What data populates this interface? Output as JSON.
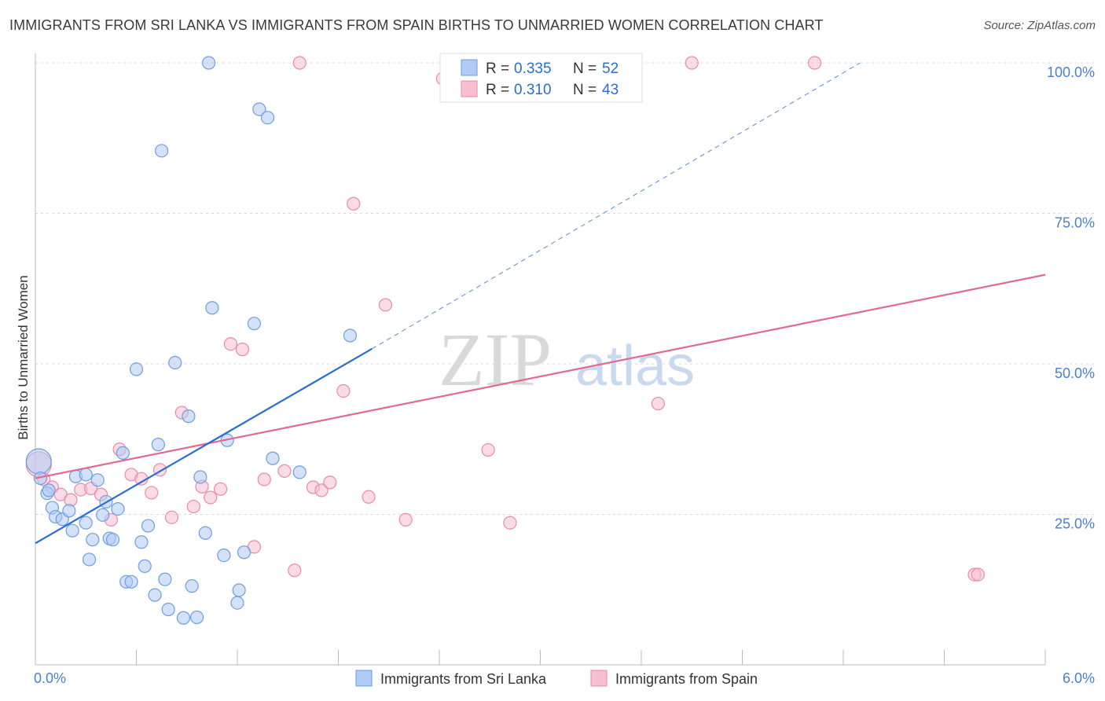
{
  "title": "IMMIGRANTS FROM SRI LANKA VS IMMIGRANTS FROM SPAIN BIRTHS TO UNMARRIED WOMEN CORRELATION CHART",
  "source": "Source: ZipAtlas.com",
  "watermark": {
    "part1": "ZIP",
    "part2": "atlas"
  },
  "colors": {
    "sri_lanka_fill": "#aecbf2",
    "sri_lanka_stroke": "#6e9ee0",
    "sri_lanka_line": "#2a6fd0",
    "spain_fill": "#f8bfd1",
    "spain_stroke": "#e88aa9",
    "spain_line": "#e06a93",
    "tick_label": "#4a7fd0",
    "grid": "#d8d8d8"
  },
  "legend": {
    "rows": [
      {
        "r_label": "R =",
        "r_value": "0.335",
        "n_label": "N =",
        "n_value": "52"
      },
      {
        "r_label": "R =",
        "r_value": "0.310",
        "n_label": "N =",
        "n_value": "43"
      }
    ]
  },
  "chart_data": {
    "type": "scatter",
    "title": "IMMIGRANTS FROM SRI LANKA VS IMMIGRANTS FROM SPAIN BIRTHS TO UNMARRIED WOMEN CORRELATION CHART",
    "xlabel": "",
    "ylabel": "Births to Unmarried Women",
    "xlim": [
      0,
      6
    ],
    "ylim": [
      0,
      100
    ],
    "x_tick_labels": [
      {
        "value": 0,
        "label": "0.0%"
      },
      {
        "value": 6,
        "label": "6.0%"
      }
    ],
    "y_tick_labels": [
      {
        "value": 25,
        "label": "25.0%"
      },
      {
        "value": 50,
        "label": "50.0%"
      },
      {
        "value": 75,
        "label": "75.0%"
      },
      {
        "value": 100,
        "label": "100.0%"
      }
    ],
    "series": [
      {
        "name": "Immigrants from Sri Lanka",
        "R": 0.335,
        "N": 52,
        "trend": {
          "x": [
            0.0,
            2.0
          ],
          "y": [
            20.2,
            52.5
          ],
          "extension_to": [
            4.9,
            100.0
          ]
        },
        "points": [
          [
            0.02,
            33.8
          ],
          [
            0.03,
            31.0
          ],
          [
            0.07,
            28.5
          ],
          [
            0.1,
            26.1
          ],
          [
            0.12,
            24.6
          ],
          [
            0.16,
            24.2
          ],
          [
            0.2,
            25.6
          ],
          [
            0.22,
            22.3
          ],
          [
            0.24,
            31.3
          ],
          [
            0.3,
            23.6
          ],
          [
            0.3,
            31.6
          ],
          [
            0.32,
            17.5
          ],
          [
            0.34,
            20.8
          ],
          [
            0.37,
            30.7
          ],
          [
            0.4,
            24.9
          ],
          [
            0.42,
            27.1
          ],
          [
            0.44,
            21.0
          ],
          [
            0.46,
            20.8
          ],
          [
            0.49,
            25.9
          ],
          [
            0.52,
            35.2
          ],
          [
            0.54,
            13.8
          ],
          [
            0.57,
            13.8
          ],
          [
            0.6,
            49.1
          ],
          [
            0.63,
            20.4
          ],
          [
            0.65,
            16.4
          ],
          [
            0.67,
            23.1
          ],
          [
            0.71,
            11.6
          ],
          [
            0.73,
            36.6
          ],
          [
            0.75,
            85.4
          ],
          [
            0.77,
            14.2
          ],
          [
            0.79,
            9.2
          ],
          [
            0.83,
            50.2
          ],
          [
            0.88,
            7.8
          ],
          [
            0.91,
            41.3
          ],
          [
            0.93,
            13.1
          ],
          [
            0.96,
            7.9
          ],
          [
            0.98,
            31.2
          ],
          [
            1.01,
            21.9
          ],
          [
            1.03,
            100.0
          ],
          [
            1.05,
            59.3
          ],
          [
            1.12,
            18.2
          ],
          [
            1.14,
            37.3
          ],
          [
            1.2,
            10.3
          ],
          [
            1.21,
            12.4
          ],
          [
            1.24,
            18.7
          ],
          [
            1.3,
            56.7
          ],
          [
            1.33,
            92.3
          ],
          [
            1.38,
            90.9
          ],
          [
            1.41,
            34.3
          ],
          [
            1.57,
            32.0
          ],
          [
            1.87,
            54.7
          ],
          [
            0.08,
            29.0
          ]
        ]
      },
      {
        "name": "Immigrants from Spain",
        "R": 0.31,
        "N": 43,
        "trend": {
          "x": [
            0.0,
            6.0
          ],
          "y": [
            31.0,
            64.8
          ]
        },
        "points": [
          [
            0.02,
            33.3
          ],
          [
            0.05,
            30.8
          ],
          [
            0.1,
            29.5
          ],
          [
            0.15,
            28.3
          ],
          [
            0.21,
            27.4
          ],
          [
            0.27,
            29.1
          ],
          [
            0.33,
            29.3
          ],
          [
            0.39,
            28.3
          ],
          [
            0.45,
            24.1
          ],
          [
            0.5,
            35.8
          ],
          [
            0.57,
            31.6
          ],
          [
            0.63,
            30.9
          ],
          [
            0.69,
            28.6
          ],
          [
            0.74,
            32.4
          ],
          [
            0.81,
            24.5
          ],
          [
            0.87,
            41.9
          ],
          [
            0.94,
            26.3
          ],
          [
            0.99,
            29.6
          ],
          [
            1.04,
            27.8
          ],
          [
            1.1,
            29.2
          ],
          [
            1.16,
            53.3
          ],
          [
            1.23,
            52.4
          ],
          [
            1.3,
            19.6
          ],
          [
            1.36,
            30.8
          ],
          [
            1.48,
            32.2
          ],
          [
            1.54,
            15.7
          ],
          [
            1.57,
            100.0
          ],
          [
            1.65,
            29.5
          ],
          [
            1.7,
            29.0
          ],
          [
            1.75,
            30.3
          ],
          [
            1.83,
            45.5
          ],
          [
            1.89,
            76.6
          ],
          [
            1.98,
            27.9
          ],
          [
            2.08,
            59.8
          ],
          [
            2.2,
            24.1
          ],
          [
            2.42,
            97.4
          ],
          [
            2.69,
            35.7
          ],
          [
            2.82,
            23.6
          ],
          [
            3.7,
            43.4
          ],
          [
            3.9,
            100.0
          ],
          [
            4.63,
            100.0
          ],
          [
            5.58,
            15.0
          ],
          [
            5.6,
            15.0
          ]
        ]
      }
    ]
  }
}
